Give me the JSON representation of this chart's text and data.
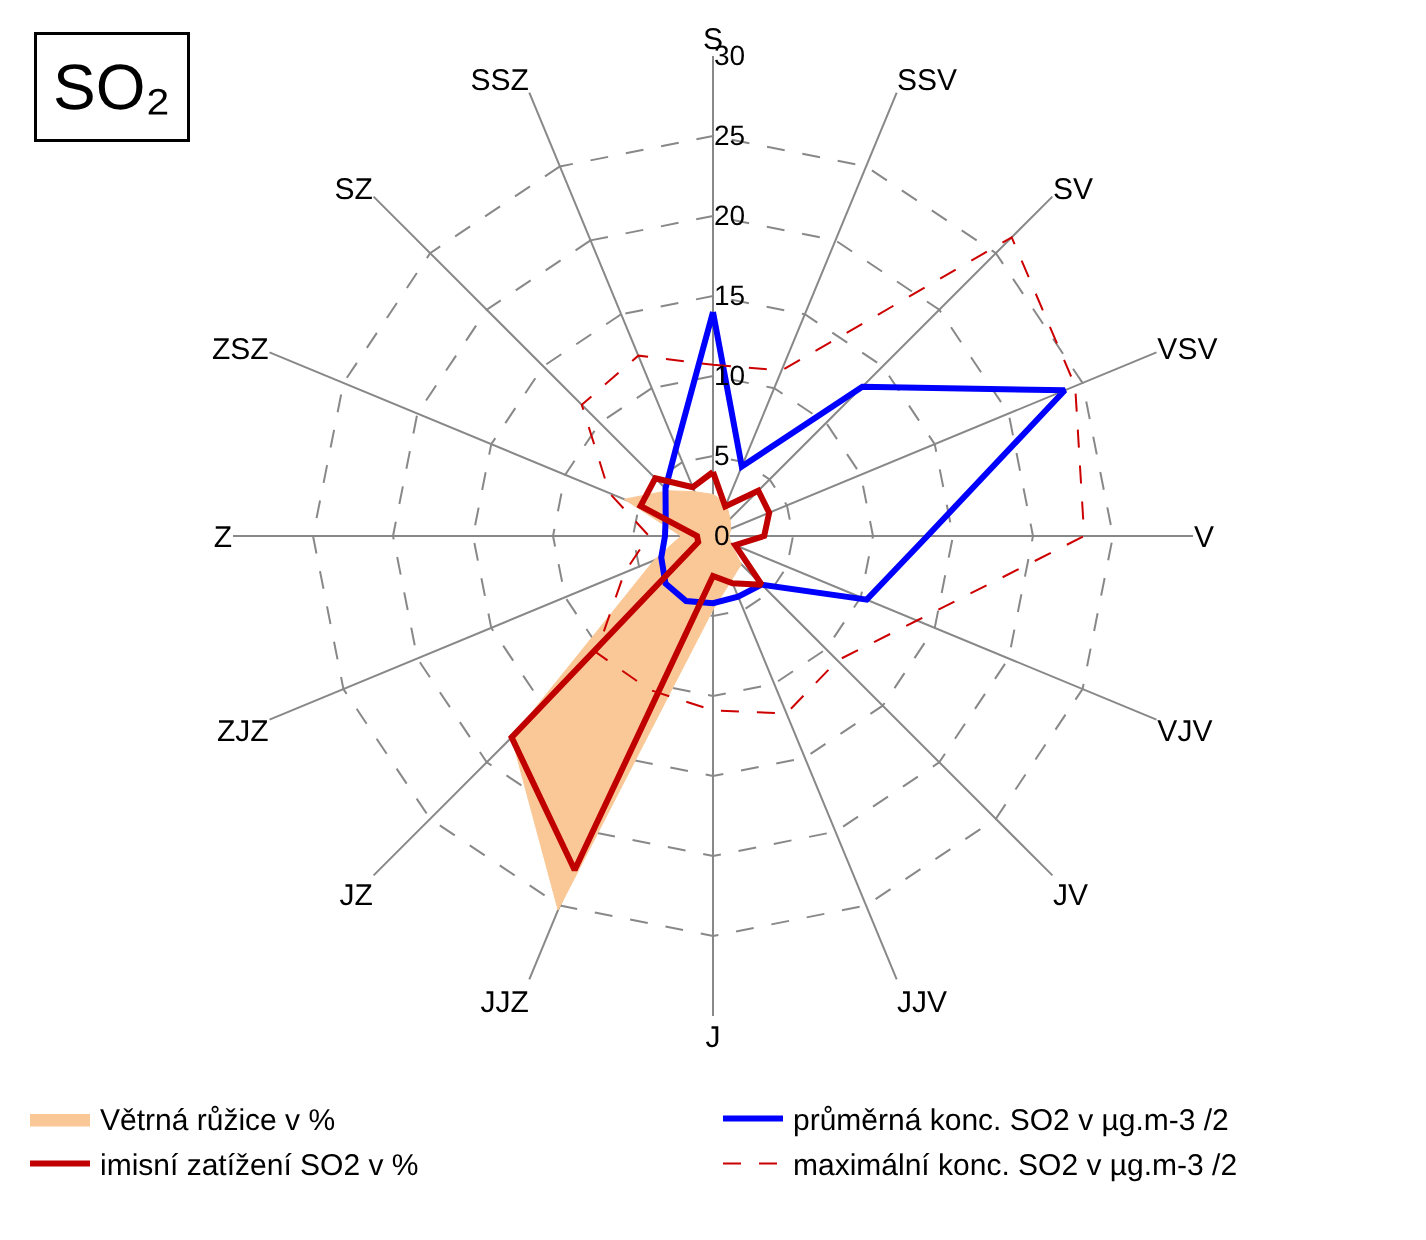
{
  "chart_data": {
    "type": "radar",
    "title": "SO₂",
    "categories": [
      "S",
      "SSV",
      "SV",
      "VSV",
      "V",
      "VJV",
      "JV",
      "JJV",
      "J",
      "JJZ",
      "JZ",
      "ZJZ",
      "Z",
      "ZSZ",
      "SZ",
      "SSZ"
    ],
    "ylim": [
      0,
      30
    ],
    "yticks": [
      0,
      5,
      10,
      15,
      20,
      25,
      30
    ],
    "grid": true,
    "legend": "bottom",
    "series": [
      {
        "name": "Větrná růžice v %",
        "type": "area",
        "color": "#fac896",
        "values": [
          2.6,
          2.2,
          1.5,
          1.2,
          1.0,
          1.2,
          2.5,
          3.0,
          4.6,
          25.3,
          17.8,
          4.0,
          2.0,
          6.0,
          4.0,
          3.0
        ]
      },
      {
        "name": "průměrná konc. SO2 v µg.m-3 /2",
        "color": "#0000ff",
        "values": [
          14.0,
          4.7,
          13.2,
          23.8,
          13.4,
          10.4,
          4.3,
          4.1,
          4.2,
          4.4,
          4.2,
          3.5,
          3.0,
          3.2,
          4.2,
          6.0
        ]
      },
      {
        "name": "imisní zatížení SO2 v %",
        "color": "#c00000",
        "values": [
          4.0,
          2.0,
          4.0,
          3.8,
          3.2,
          1.5,
          4.3,
          3.2,
          2.5,
          22.6,
          17.8,
          1.0,
          1.0,
          4.9,
          5.1,
          3.3
        ]
      },
      {
        "name": "maximální konc. SO2 v µg.m-3 /2",
        "color": "#cc0000",
        "line_style": "dashed",
        "values": [
          10.7,
          11.2,
          26.4,
          24.5,
          23.2,
          13.8,
          11.0,
          12.0,
          10.9,
          10.4,
          10.3,
          6.0,
          4.0,
          7.0,
          11.6,
          12.2
        ]
      }
    ]
  }
}
